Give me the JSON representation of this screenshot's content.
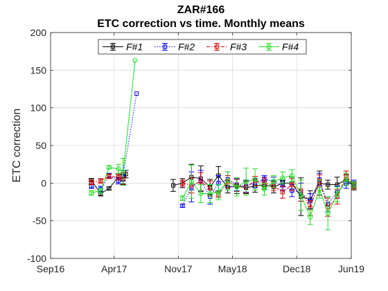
{
  "chart_data": {
    "type": "line",
    "title": "ZAR#166",
    "subtitle": "ETC correction vs time. Monthly means",
    "xlabel": "",
    "ylabel": "ETC correction",
    "xlim": [
      "2016-09-01",
      "2019-06-01"
    ],
    "ylim": [
      -100,
      200
    ],
    "xticks": [
      {
        "date": "2016-09-01",
        "label": "Sep16"
      },
      {
        "date": "2017-04-01",
        "label": "Apr17"
      },
      {
        "date": "2017-11-01",
        "label": "Nov17"
      },
      {
        "date": "2018-05-01",
        "label": "May18"
      },
      {
        "date": "2018-12-01",
        "label": "Dec18"
      },
      {
        "date": "2019-06-01",
        "label": "Jun19"
      }
    ],
    "yticks": [
      -100,
      -50,
      0,
      50,
      100,
      150,
      200
    ],
    "grid": true,
    "legend_position": "top",
    "series": [
      {
        "name": "F#1",
        "color": "#000000",
        "dash": "solid",
        "points": [
          {
            "x": "2017-01-15",
            "y": 4,
            "err": 2
          },
          {
            "x": "2017-02-15",
            "y": -14,
            "err": 3
          },
          {
            "x": "2017-03-15",
            "y": -7,
            "err": 2
          },
          {
            "x": "2017-04-15",
            "y": 8,
            "err": 4
          },
          {
            "x": "2017-05-01",
            "y": 5,
            "err": 6
          },
          {
            "x": "2017-05-10",
            "y": 12,
            "err": 5
          },
          {
            "x": null,
            "y": null
          },
          {
            "x": "2017-10-15",
            "y": -3,
            "err": 8
          },
          {
            "x": "2017-11-15",
            "y": 0,
            "err": 6
          },
          {
            "x": "2017-12-15",
            "y": 8,
            "err": 17
          },
          {
            "x": "2018-01-15",
            "y": 6,
            "err": 17
          },
          {
            "x": "2018-02-15",
            "y": -5,
            "err": 10
          },
          {
            "x": "2018-03-15",
            "y": 10,
            "err": 12
          },
          {
            "x": "2018-04-15",
            "y": -5,
            "err": 8
          },
          {
            "x": "2018-05-15",
            "y": -4,
            "err": 10
          },
          {
            "x": "2018-06-15",
            "y": -6,
            "err": 8
          },
          {
            "x": "2018-07-15",
            "y": -4,
            "err": 8
          },
          {
            "x": "2018-08-15",
            "y": -2,
            "err": 6
          },
          {
            "x": "2018-09-15",
            "y": -5,
            "err": 8
          },
          {
            "x": "2018-10-15",
            "y": 0,
            "err": 4
          },
          {
            "x": "2018-11-15",
            "y": 0,
            "err": 8
          },
          {
            "x": "2018-12-15",
            "y": -18,
            "err": 25
          },
          {
            "x": "2019-01-15",
            "y": -22,
            "err": 12
          },
          {
            "x": "2019-02-15",
            "y": 0,
            "err": 16
          },
          {
            "x": "2019-03-15",
            "y": -2,
            "err": 6
          },
          {
            "x": "2019-04-15",
            "y": -2,
            "err": 10
          },
          {
            "x": "2019-05-15",
            "y": 5,
            "err": 6
          },
          {
            "x": "2019-06-10",
            "y": -5,
            "err": 4
          }
        ]
      },
      {
        "name": "F#2",
        "color": "#0000ff",
        "dash": "dotted",
        "points": [
          {
            "x": "2017-01-15",
            "y": -4,
            "err": 3
          },
          {
            "x": "2017-02-15",
            "y": -8,
            "err": 4
          },
          {
            "x": "2017-03-15",
            "y": 10,
            "err": 3
          },
          {
            "x": "2017-04-15",
            "y": 3,
            "err": 4
          },
          {
            "x": "2017-05-01",
            "y": 10,
            "err": 7
          },
          {
            "x": "2017-06-15",
            "y": 119,
            "err": 0
          },
          {
            "x": null,
            "y": null
          },
          {
            "x": "2017-11-15",
            "y": -30,
            "err": 2
          },
          {
            "x": "2017-12-15",
            "y": -5,
            "err": 20
          },
          {
            "x": "2018-01-15",
            "y": 3,
            "err": 14
          },
          {
            "x": "2018-02-15",
            "y": -18,
            "err": 10
          },
          {
            "x": "2018-03-15",
            "y": 0,
            "err": 10
          },
          {
            "x": "2018-04-15",
            "y": 5,
            "err": 10
          },
          {
            "x": "2018-05-15",
            "y": -2,
            "err": 8
          },
          {
            "x": "2018-06-15",
            "y": -4,
            "err": 8
          },
          {
            "x": "2018-07-15",
            "y": 0,
            "err": 6
          },
          {
            "x": "2018-08-15",
            "y": 6,
            "err": 4
          },
          {
            "x": "2018-09-15",
            "y": 2,
            "err": 6
          },
          {
            "x": "2018-10-15",
            "y": -3,
            "err": 6
          },
          {
            "x": "2018-11-15",
            "y": -10,
            "err": 8
          },
          {
            "x": "2018-12-15",
            "y": -12,
            "err": 12
          },
          {
            "x": "2019-01-15",
            "y": -24,
            "err": 10
          },
          {
            "x": "2019-02-15",
            "y": 5,
            "err": 8
          },
          {
            "x": "2019-03-15",
            "y": -28,
            "err": 10
          },
          {
            "x": "2019-04-15",
            "y": -12,
            "err": 8
          },
          {
            "x": "2019-05-15",
            "y": -1,
            "err": 6
          },
          {
            "x": "2019-06-10",
            "y": 0,
            "err": 4
          }
        ]
      },
      {
        "name": "F#3",
        "color": "#d00000",
        "dash": "dashdot",
        "points": [
          {
            "x": "2017-01-15",
            "y": 1,
            "err": 3
          },
          {
            "x": "2017-02-15",
            "y": 3,
            "err": 3
          },
          {
            "x": "2017-03-15",
            "y": 9,
            "err": 3
          },
          {
            "x": "2017-04-15",
            "y": 8,
            "err": 4
          },
          {
            "x": "2017-05-01",
            "y": 6,
            "err": 8
          },
          {
            "x": null,
            "y": null
          },
          {
            "x": "2017-11-15",
            "y": 0,
            "err": 4
          },
          {
            "x": "2017-12-15",
            "y": -3,
            "err": 10
          },
          {
            "x": "2018-01-15",
            "y": 2,
            "err": 12
          },
          {
            "x": "2018-02-15",
            "y": -7,
            "err": 10
          },
          {
            "x": "2018-03-15",
            "y": -15,
            "err": 4
          },
          {
            "x": "2018-04-15",
            "y": 2,
            "err": 8
          },
          {
            "x": "2018-05-15",
            "y": -3,
            "err": 8
          },
          {
            "x": "2018-06-15",
            "y": -5,
            "err": 8
          },
          {
            "x": "2018-07-15",
            "y": 3,
            "err": 6
          },
          {
            "x": "2018-08-15",
            "y": 1,
            "err": 6
          },
          {
            "x": "2018-09-15",
            "y": -4,
            "err": 6
          },
          {
            "x": "2018-10-15",
            "y": -12,
            "err": 8
          },
          {
            "x": "2018-11-15",
            "y": -2,
            "err": 8
          },
          {
            "x": "2018-12-15",
            "y": -10,
            "err": 14
          },
          {
            "x": "2019-01-15",
            "y": -33,
            "err": 10
          },
          {
            "x": "2019-02-15",
            "y": 3,
            "err": 8
          },
          {
            "x": "2019-03-15",
            "y": -32,
            "err": 12
          },
          {
            "x": "2019-04-15",
            "y": -18,
            "err": 10
          },
          {
            "x": "2019-05-15",
            "y": 10,
            "err": 6
          },
          {
            "x": "2019-06-10",
            "y": -3,
            "err": 4
          }
        ]
      },
      {
        "name": "F#4",
        "color": "#22dd22",
        "dash": "solid",
        "points": [
          {
            "x": "2017-01-15",
            "y": -13,
            "err": 3
          },
          {
            "x": "2017-02-15",
            "y": -10,
            "err": 3
          },
          {
            "x": "2017-03-15",
            "y": 21,
            "err": 2
          },
          {
            "x": "2017-04-15",
            "y": 19,
            "err": 6
          },
          {
            "x": "2017-05-01",
            "y": 15,
            "err": 18
          },
          {
            "x": "2017-06-10",
            "y": 163,
            "err": 0
          },
          {
            "x": null,
            "y": null
          },
          {
            "x": "2017-11-15",
            "y": -20,
            "err": 3
          },
          {
            "x": "2017-12-15",
            "y": 2,
            "err": 22
          },
          {
            "x": "2018-01-15",
            "y": -14,
            "err": 12
          },
          {
            "x": "2018-02-15",
            "y": -14,
            "err": 12
          },
          {
            "x": "2018-03-15",
            "y": -12,
            "err": 10
          },
          {
            "x": "2018-04-15",
            "y": 3,
            "err": 12
          },
          {
            "x": "2018-05-15",
            "y": -5,
            "err": 12
          },
          {
            "x": "2018-06-15",
            "y": 2,
            "err": 18
          },
          {
            "x": "2018-07-15",
            "y": 5,
            "err": 14
          },
          {
            "x": "2018-08-15",
            "y": -8,
            "err": 8
          },
          {
            "x": "2018-09-15",
            "y": 2,
            "err": 8
          },
          {
            "x": "2018-10-15",
            "y": 7,
            "err": 8
          },
          {
            "x": "2018-11-15",
            "y": 10,
            "err": 8
          },
          {
            "x": "2018-12-15",
            "y": -16,
            "err": 20
          },
          {
            "x": "2019-01-15",
            "y": -45,
            "err": 10
          },
          {
            "x": "2019-02-15",
            "y": -8,
            "err": 12
          },
          {
            "x": "2019-03-15",
            "y": -40,
            "err": 22
          },
          {
            "x": "2019-04-15",
            "y": -15,
            "err": 10
          },
          {
            "x": "2019-05-15",
            "y": 5,
            "err": 8
          },
          {
            "x": "2019-06-10",
            "y": -2,
            "err": 4
          }
        ]
      }
    ]
  }
}
